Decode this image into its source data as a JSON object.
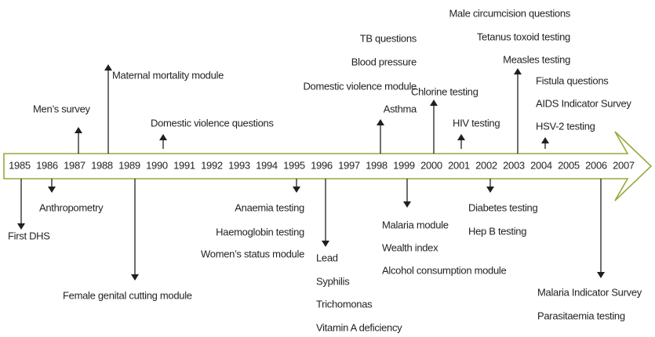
{
  "years": [
    "1985",
    "1986",
    "1987",
    "1988",
    "1989",
    "1990",
    "1991",
    "1992",
    "1993",
    "1994",
    "1995",
    "1996",
    "1997",
    "1998",
    "1999",
    "2000",
    "2001",
    "2002",
    "2003",
    "2004",
    "2005",
    "2006",
    "2007"
  ],
  "events_above": [
    [
      "Men’s survey"
    ],
    [
      "Maternal mortality module"
    ],
    [
      "Domestic violence questions"
    ],
    [
      "TB questions",
      "Blood pressure",
      "Domestic violence module",
      "Asthma"
    ],
    [
      "Chlorine testing"
    ],
    [
      "HIV testing"
    ],
    [
      "Male circumcision questions",
      "Tetanus toxoid testing",
      "Measles testing"
    ],
    [
      "Fistula questions",
      "AIDS Indicator Survey",
      "HSV-2 testing"
    ]
  ],
  "events_below": [
    [
      "First DHS"
    ],
    [
      "Anthropometry"
    ],
    [
      "Female genital cutting module"
    ],
    [
      "Anaemia testing",
      "Haemoglobin testing",
      "Women’s status module"
    ],
    [
      "Lead",
      "Syphilis",
      "Trichomonas",
      "Vitamin A deficiency"
    ],
    [
      "Malaria module",
      "Wealth index",
      "Alcohol consumption module"
    ],
    [
      "Diabetes testing",
      "Hep B testing"
    ],
    [
      "Malaria Indicator Survey",
      "Parasitaemia testing"
    ]
  ]
}
